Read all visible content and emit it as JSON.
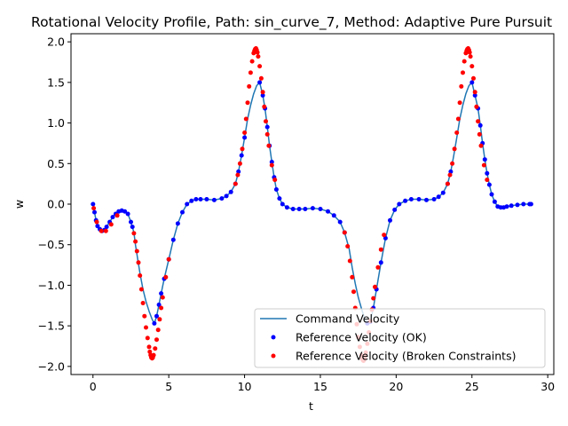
{
  "chart_data": {
    "type": "line",
    "title": "Rotational Velocity Profile, Path: sin_curve_7, Method: Adaptive Pure Pursuit",
    "xlabel": "t",
    "ylabel": "w",
    "xlim": [
      -1.45,
      30.4
    ],
    "ylim": [
      -2.1,
      2.1
    ],
    "xticks": [
      0,
      5,
      10,
      15,
      20,
      25,
      30
    ],
    "yticks": [
      -2.0,
      -1.5,
      -1.0,
      -0.5,
      0.0,
      0.5,
      1.0,
      1.5,
      2.0
    ],
    "xtick_labels": [
      "0",
      "5",
      "10",
      "15",
      "20",
      "25",
      "30"
    ],
    "ytick_labels": [
      "−2.0",
      "−1.5",
      "−1.0",
      "−0.5",
      "0.0",
      "0.5",
      "1.0",
      "1.5",
      "2.0"
    ],
    "grid": false,
    "legend_position": "lower-right",
    "colors": {
      "command": "#1f77b4",
      "ok": "#0000ff",
      "broken": "#ff0000"
    },
    "legend": [
      {
        "label": "Command Velocity",
        "kind": "line",
        "color": "#1f77b4"
      },
      {
        "label": "Reference Velocity (OK)",
        "kind": "marker",
        "color": "#0000ff"
      },
      {
        "label": "Reference Velocity (Broken Constraints)",
        "kind": "marker",
        "color": "#ff0000"
      }
    ],
    "series": [
      {
        "name": "Command Velocity",
        "style": "line",
        "x": [
          0,
          0.1,
          0.2,
          0.3,
          0.45,
          0.6,
          0.75,
          0.9,
          1.1,
          1.3,
          1.5,
          1.7,
          1.9,
          2.1,
          2.3,
          2.5,
          2.7,
          2.8,
          2.95,
          3.1,
          3.3,
          3.5,
          3.7,
          3.9,
          4.05,
          4.2,
          4.35,
          4.5,
          4.7,
          5.0,
          5.3,
          5.6,
          5.9,
          6.2,
          6.5,
          6.8,
          7.1,
          7.5,
          8.0,
          8.5,
          8.8,
          9.1,
          9.4,
          9.6,
          9.8,
          10.0,
          10.2,
          10.4,
          10.6,
          10.8,
          11.0,
          11.2,
          11.35,
          11.5,
          11.65,
          11.8,
          11.95,
          12.1,
          12.3,
          12.5,
          12.8,
          13.2,
          13.6,
          14.0,
          14.5,
          15.0,
          15.5,
          15.9,
          16.3,
          16.6,
          16.9,
          17.1,
          17.3,
          17.5,
          17.7,
          17.9,
          18.1,
          18.3,
          18.5,
          18.7,
          19.0,
          19.3,
          19.6,
          19.9,
          20.2,
          20.6,
          21.0,
          21.5,
          22.0,
          22.5,
          22.8,
          23.1,
          23.4,
          23.6,
          23.8,
          24.0,
          24.2,
          24.4,
          24.6,
          24.8,
          25.0,
          25.2,
          25.4,
          25.55,
          25.7,
          25.85,
          26.0,
          26.15,
          26.3,
          26.5,
          26.7,
          26.9,
          27.1,
          27.3,
          27.6,
          28.0,
          28.4,
          28.8,
          28.9
        ],
        "y": [
          0.0,
          -0.1,
          -0.2,
          -0.27,
          -0.31,
          -0.33,
          -0.32,
          -0.28,
          -0.22,
          -0.16,
          -0.12,
          -0.09,
          -0.08,
          -0.09,
          -0.12,
          -0.22,
          -0.35,
          -0.5,
          -0.68,
          -0.85,
          -1.05,
          -1.2,
          -1.32,
          -1.42,
          -1.47,
          -1.38,
          -1.24,
          -1.1,
          -0.92,
          -0.68,
          -0.44,
          -0.24,
          -0.1,
          0.0,
          0.04,
          0.06,
          0.06,
          0.06,
          0.05,
          0.07,
          0.1,
          0.15,
          0.25,
          0.4,
          0.6,
          0.82,
          1.05,
          1.22,
          1.36,
          1.46,
          1.5,
          1.34,
          1.18,
          0.95,
          0.72,
          0.52,
          0.33,
          0.18,
          0.07,
          0.0,
          -0.04,
          -0.06,
          -0.06,
          -0.06,
          -0.05,
          -0.06,
          -0.09,
          -0.14,
          -0.22,
          -0.35,
          -0.55,
          -0.78,
          -0.98,
          -1.15,
          -1.28,
          -1.4,
          -1.47,
          -1.45,
          -1.28,
          -1.05,
          -0.72,
          -0.42,
          -0.2,
          -0.07,
          0.0,
          0.04,
          0.06,
          0.06,
          0.05,
          0.06,
          0.09,
          0.14,
          0.25,
          0.4,
          0.6,
          0.82,
          1.05,
          1.22,
          1.36,
          1.46,
          1.5,
          1.34,
          1.18,
          0.97,
          0.75,
          0.55,
          0.38,
          0.24,
          0.12,
          0.03,
          -0.03,
          -0.04,
          -0.04,
          -0.03,
          -0.02,
          -0.01,
          0.0,
          0.0,
          0.0
        ]
      },
      {
        "name": "Reference Velocity (OK)",
        "style": "scatter",
        "x": [
          0,
          0.1,
          0.2,
          0.3,
          0.45,
          0.6,
          0.75,
          0.9,
          1.1,
          1.3,
          1.5,
          1.7,
          1.9,
          2.1,
          2.3,
          2.5,
          2.6,
          4.05,
          4.2,
          4.35,
          4.5,
          4.7,
          5.0,
          5.3,
          5.6,
          5.9,
          6.2,
          6.5,
          6.8,
          7.1,
          7.5,
          8.0,
          8.5,
          8.8,
          9.1,
          9.4,
          9.6,
          9.8,
          10.0,
          11.0,
          11.2,
          11.35,
          11.5,
          11.65,
          11.8,
          11.95,
          12.1,
          12.3,
          12.5,
          12.8,
          13.2,
          13.6,
          14.0,
          14.5,
          15.0,
          15.5,
          15.9,
          16.3,
          16.6,
          18.1,
          18.3,
          18.5,
          18.7,
          19.0,
          19.3,
          19.6,
          19.9,
          20.2,
          20.6,
          21.0,
          21.5,
          22.0,
          22.5,
          22.8,
          23.1,
          23.4,
          23.6,
          25.0,
          25.2,
          25.4,
          25.55,
          25.7,
          25.85,
          26.0,
          26.15,
          26.3,
          26.5,
          26.7,
          26.9,
          27.1,
          27.3,
          27.6,
          28.0,
          28.4,
          28.8,
          28.9
        ],
        "y": [
          0.0,
          -0.1,
          -0.2,
          -0.27,
          -0.31,
          -0.33,
          -0.32,
          -0.28,
          -0.22,
          -0.16,
          -0.12,
          -0.09,
          -0.08,
          -0.09,
          -0.12,
          -0.22,
          -0.28,
          -1.47,
          -1.38,
          -1.24,
          -1.1,
          -0.92,
          -0.68,
          -0.44,
          -0.24,
          -0.1,
          0.0,
          0.04,
          0.06,
          0.06,
          0.06,
          0.05,
          0.07,
          0.1,
          0.15,
          0.25,
          0.4,
          0.6,
          0.82,
          1.5,
          1.34,
          1.18,
          0.95,
          0.72,
          0.52,
          0.33,
          0.18,
          0.07,
          0.0,
          -0.04,
          -0.06,
          -0.06,
          -0.06,
          -0.05,
          -0.06,
          -0.09,
          -0.14,
          -0.22,
          -0.35,
          -1.47,
          -1.45,
          -1.28,
          -1.05,
          -0.72,
          -0.42,
          -0.2,
          -0.07,
          0.0,
          0.04,
          0.06,
          0.06,
          0.05,
          0.06,
          0.09,
          0.14,
          0.25,
          0.4,
          1.5,
          1.34,
          1.18,
          0.97,
          0.75,
          0.55,
          0.38,
          0.24,
          0.12,
          0.03,
          -0.03,
          -0.04,
          -0.04,
          -0.03,
          -0.02,
          -0.01,
          0.0,
          0.0,
          0.0
        ]
      },
      {
        "name": "Reference Velocity (Broken Constraints)",
        "style": "scatter",
        "x": [
          0.05,
          0.25,
          0.55,
          0.85,
          1.2,
          1.6,
          2.7,
          2.8,
          2.9,
          3.0,
          3.1,
          3.2,
          3.3,
          3.4,
          3.5,
          3.6,
          3.7,
          3.75,
          3.8,
          3.85,
          3.9,
          3.95,
          4.0,
          4.1,
          4.2,
          4.3,
          4.4,
          4.5,
          4.6,
          4.8,
          5.0,
          9.4,
          9.55,
          9.7,
          9.85,
          10.0,
          10.1,
          10.2,
          10.3,
          10.4,
          10.5,
          10.6,
          10.65,
          10.7,
          10.75,
          10.8,
          10.85,
          10.9,
          11.0,
          11.1,
          11.2,
          11.3,
          11.4,
          11.5,
          11.6,
          11.8,
          12.0,
          16.6,
          16.8,
          16.95,
          17.1,
          17.2,
          17.3,
          17.4,
          17.5,
          17.6,
          17.7,
          17.75,
          17.8,
          17.85,
          17.9,
          17.95,
          18.0,
          18.1,
          18.2,
          18.3,
          18.4,
          18.5,
          18.6,
          18.8,
          19.0,
          19.2,
          23.4,
          23.55,
          23.7,
          23.85,
          24.0,
          24.1,
          24.2,
          24.3,
          24.4,
          24.5,
          24.6,
          24.65,
          24.7,
          24.75,
          24.8,
          24.85,
          24.9,
          25.0,
          25.1,
          25.2,
          25.3,
          25.4,
          25.5,
          25.6,
          25.8,
          26.0
        ],
        "y": [
          -0.05,
          -0.22,
          -0.33,
          -0.33,
          -0.25,
          -0.14,
          -0.36,
          -0.46,
          -0.58,
          -0.72,
          -0.88,
          -1.05,
          -1.22,
          -1.38,
          -1.52,
          -1.65,
          -1.76,
          -1.82,
          -1.86,
          -1.89,
          -1.9,
          -1.89,
          -1.86,
          -1.78,
          -1.67,
          -1.55,
          -1.42,
          -1.28,
          -1.15,
          -0.9,
          -0.68,
          0.25,
          0.36,
          0.5,
          0.68,
          0.88,
          1.05,
          1.25,
          1.45,
          1.62,
          1.76,
          1.86,
          1.89,
          1.91,
          1.92,
          1.9,
          1.87,
          1.82,
          1.7,
          1.55,
          1.38,
          1.2,
          1.02,
          0.86,
          0.72,
          0.48,
          0.3,
          -0.35,
          -0.52,
          -0.7,
          -0.9,
          -1.08,
          -1.28,
          -1.48,
          -1.64,
          -1.76,
          -1.86,
          -1.9,
          -1.92,
          -1.93,
          -1.91,
          -1.88,
          -1.83,
          -1.72,
          -1.58,
          -1.44,
          -1.3,
          -1.16,
          -1.02,
          -0.78,
          -0.56,
          -0.38,
          0.25,
          0.36,
          0.5,
          0.68,
          0.88,
          1.05,
          1.25,
          1.45,
          1.62,
          1.76,
          1.86,
          1.89,
          1.91,
          1.92,
          1.9,
          1.87,
          1.82,
          1.7,
          1.55,
          1.38,
          1.2,
          1.02,
          0.86,
          0.72,
          0.48,
          0.3
        ]
      }
    ]
  }
}
